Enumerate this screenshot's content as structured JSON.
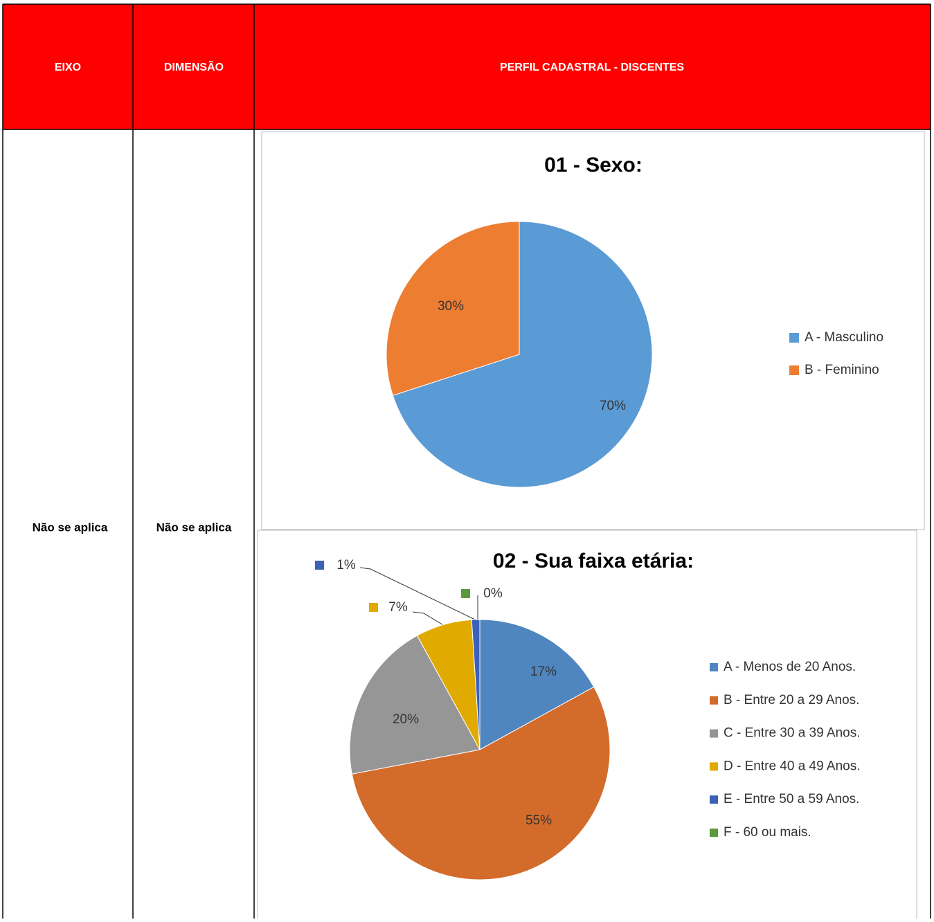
{
  "table": {
    "header": [
      "EIXO",
      "DIMENSÃO",
      "PERFIL CADASTRAL - DISCENTES"
    ],
    "row": [
      "Não se aplica",
      "Não se aplica"
    ]
  },
  "chart_data": [
    {
      "type": "pie",
      "title": "01 - Sexo:",
      "categories": [
        "A - Masculino",
        "B - Feminino"
      ],
      "values": [
        70,
        30
      ],
      "value_labels": [
        "70%",
        "30%"
      ],
      "colors": [
        "#5b9bd5",
        "#ed7d31"
      ],
      "legend": "right"
    },
    {
      "type": "pie",
      "title": "02 - Sua faixa etária:",
      "categories": [
        "A - Menos de 20 Anos.",
        "B - Entre 20 a 29 Anos.",
        "C - Entre 30 a 39 Anos.",
        "D - Entre 40 a 49 Anos.",
        "E - Entre 50 a 59 Anos.",
        "F - 60 ou mais."
      ],
      "values": [
        17,
        55,
        20,
        7,
        1,
        0
      ],
      "value_labels": [
        "17%",
        "55%",
        "20%",
        "7%",
        "1%",
        "0%"
      ],
      "colors": [
        "#4f86c0",
        "#d36b2b",
        "#969696",
        "#e0aa00",
        "#3b62b8",
        "#5b9a3c"
      ],
      "legend": "right"
    }
  ]
}
